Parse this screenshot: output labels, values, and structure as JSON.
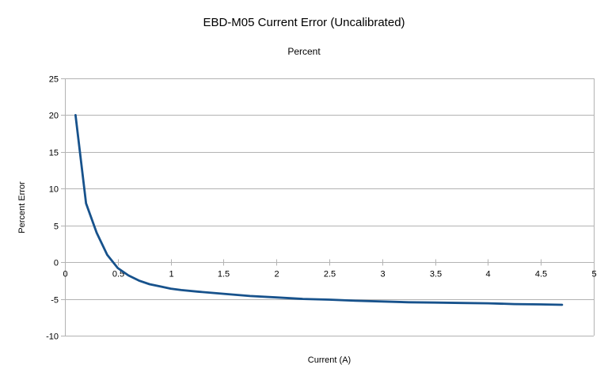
{
  "page": {
    "background": "#ffffff"
  },
  "chart_data": {
    "type": "line",
    "title": "EBD-M05 Current Error (Uncalibrated)",
    "subtitle": "Percent",
    "xlabel": "Current (A)",
    "ylabel": "Percent Error",
    "xlim": [
      0,
      5
    ],
    "ylim": [
      -10,
      25
    ],
    "x_ticks": [
      0,
      0.5,
      1,
      1.5,
      2,
      2.5,
      3,
      3.5,
      4,
      4.5,
      5
    ],
    "x_tick_labels": [
      "0",
      "0.5",
      "1",
      "1.5",
      "2",
      "2.5",
      "3",
      "3.5",
      "4",
      "4.5",
      "5"
    ],
    "y_ticks": [
      25,
      20,
      15,
      10,
      5,
      0,
      -5,
      -10
    ],
    "y_tick_labels": [
      "25",
      "20",
      "15",
      "10",
      "5",
      "0",
      "-5",
      "-10"
    ],
    "grid": "horizontal-major",
    "legend": "none",
    "x_axis_position": "zero-line",
    "colors": {
      "series": "#17528c",
      "grid": "#b3b3b3",
      "axis": "#b3b3b3",
      "text": "#000000",
      "background": "#ffffff"
    },
    "series": [
      {
        "name": "Percent",
        "x": [
          0.1,
          0.2,
          0.3,
          0.4,
          0.5,
          0.6,
          0.7,
          0.8,
          0.9,
          1.0,
          1.1,
          1.25,
          1.5,
          1.75,
          2.0,
          2.25,
          2.5,
          2.75,
          3.0,
          3.25,
          3.5,
          3.75,
          4.0,
          4.25,
          4.5,
          4.7
        ],
        "y": [
          20,
          8,
          4,
          1,
          -0.8,
          -1.8,
          -2.5,
          -3.0,
          -3.3,
          -3.6,
          -3.8,
          -4.0,
          -4.3,
          -4.6,
          -4.8,
          -5.0,
          -5.1,
          -5.25,
          -5.35,
          -5.45,
          -5.5,
          -5.55,
          -5.6,
          -5.7,
          -5.75,
          -5.8
        ]
      }
    ]
  }
}
